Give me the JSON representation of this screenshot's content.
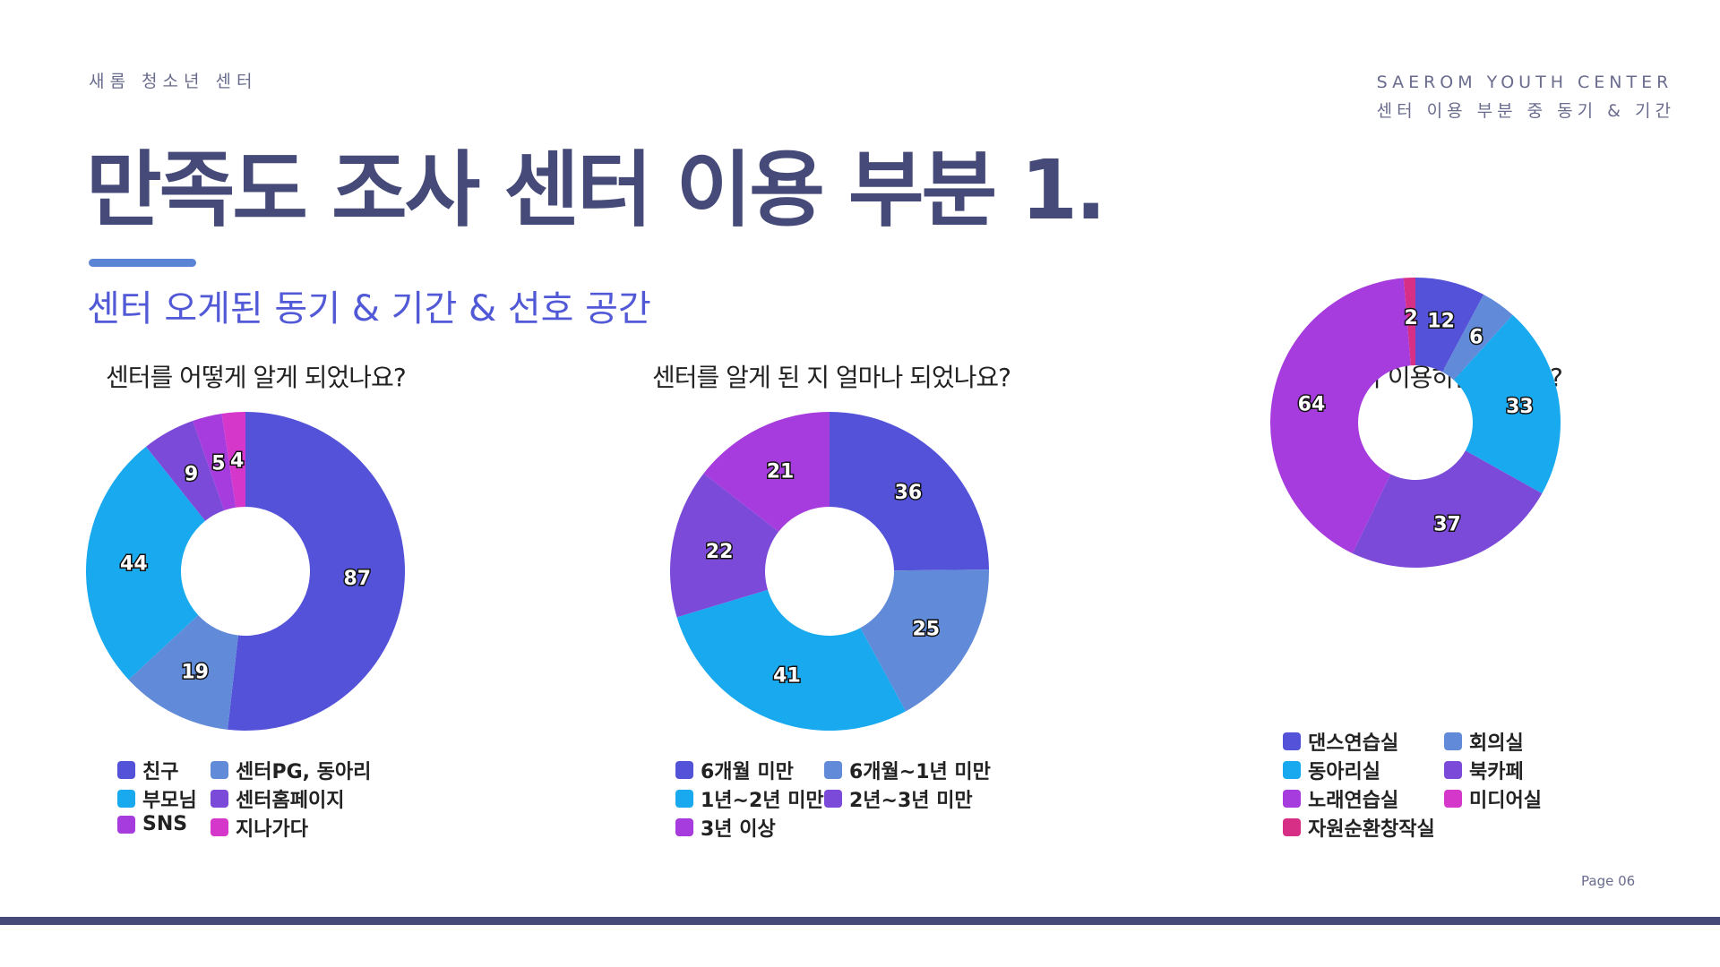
{
  "header": {
    "org_kr": "새롬 청소년 센터",
    "org_en": "SAEROM YOUTH CENTER",
    "section": "센터 이용 부분 중 동기 & 기간"
  },
  "title": "만족도 조사 센터 이용 부분 1.",
  "subtitle": "센터 오게된  동기 & 기간 & 선호 공간",
  "page_label": "Page 06",
  "chart_data": [
    {
      "type": "pie",
      "title": "센터를 어떻게 알게 되었나요?",
      "categories": [
        "친구",
        "센터PG, 동아리",
        "부모님",
        "센터홈페이지",
        "SNS",
        "지나가다"
      ],
      "values": [
        87,
        19,
        44,
        9,
        5,
        4
      ],
      "colors": [
        "#5352d9",
        "#618bd8",
        "#19a9ef",
        "#7c4ad8",
        "#a63cdd",
        "#d637cb"
      ],
      "donut": true,
      "legend_position": "bottom"
    },
    {
      "type": "pie",
      "title": "센터를 알게 된 지 얼마나 되었나요?",
      "categories": [
        "6개월 미만",
        "6개월~1년 미만",
        "1년~2년 미만",
        "2년~3년 미만",
        "3년 이상"
      ],
      "values": [
        36,
        25,
        41,
        22,
        21
      ],
      "colors": [
        "#5352d9",
        "#618bd8",
        "#19a9ef",
        "#7c4ad8",
        "#a63cdd"
      ],
      "donut": true,
      "legend_position": "bottom"
    },
    {
      "type": "pie",
      "title": "제일 많이 이용하는 공간은?",
      "categories": [
        "댄스연습실",
        "회의실",
        "동아리실",
        "북카페",
        "노래연습실",
        "미디어실",
        "자원순환창작실"
      ],
      "values": [
        12,
        6,
        33,
        37,
        64,
        0,
        2
      ],
      "label_visible": [
        true,
        true,
        true,
        true,
        true,
        false,
        true
      ],
      "colors": [
        "#5352d9",
        "#618bd8",
        "#19a9ef",
        "#7c4ad8",
        "#a63cdd",
        "#d637cb",
        "#d62f85"
      ],
      "donut": true,
      "legend_position": "bottom"
    }
  ]
}
